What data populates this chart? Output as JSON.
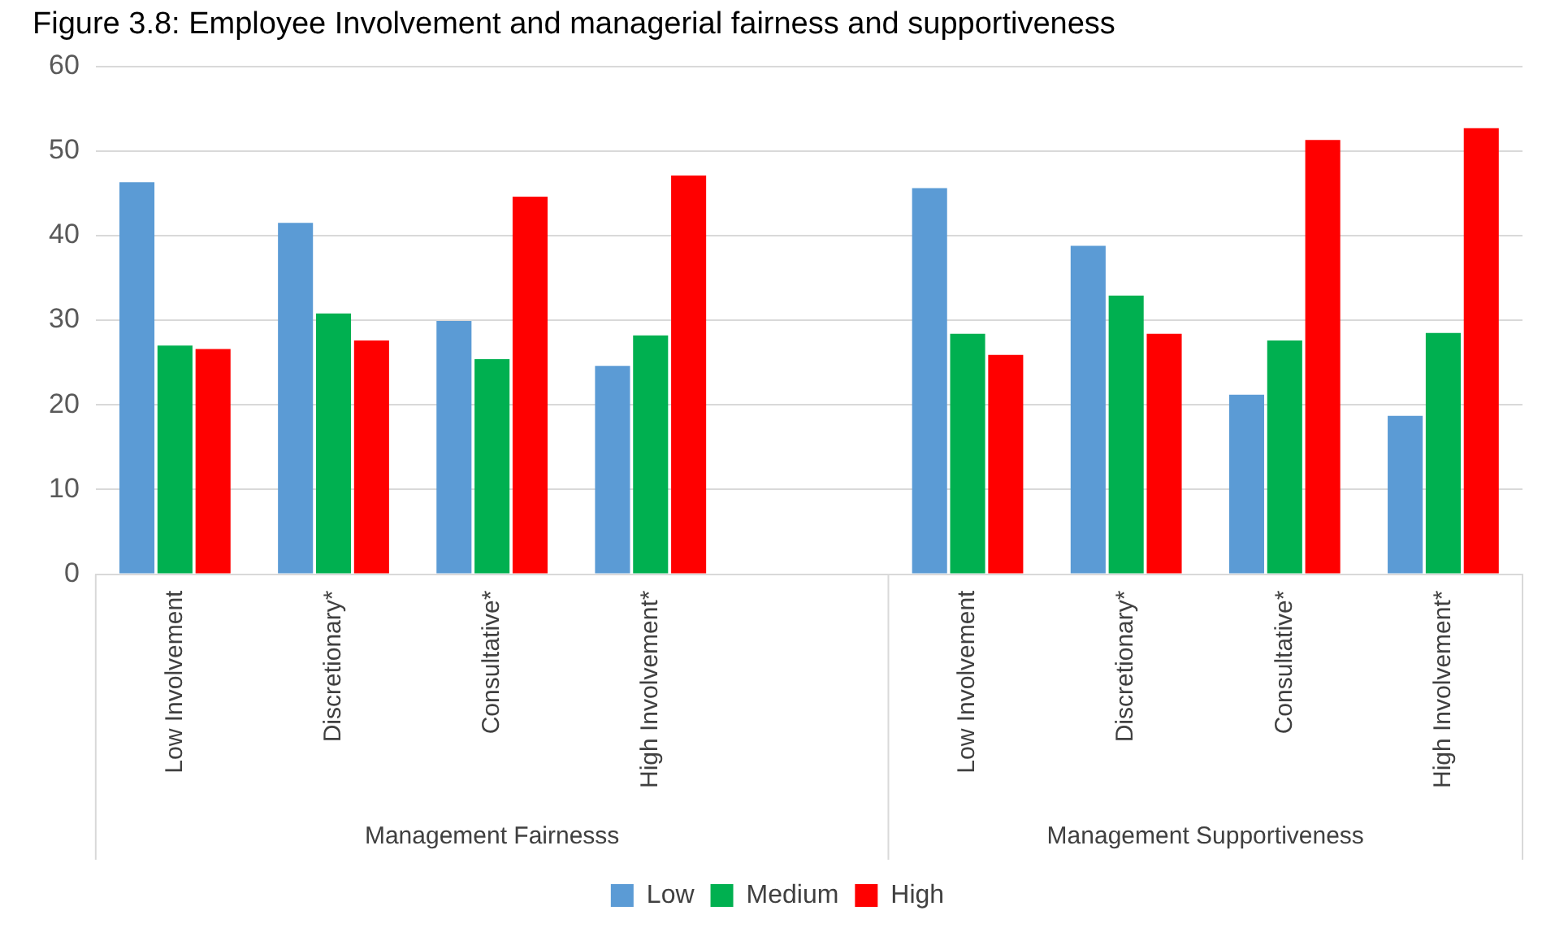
{
  "chart_data": {
    "type": "bar",
    "title": "Figure 3.8: Employee Involvement and managerial fairness and supportiveness",
    "categories": [
      "Low Involvement",
      "Discretionary*",
      "Consultative*",
      "High Involvement*",
      null,
      "Low Involvement",
      "Discretionary*",
      "Consultative*",
      "High Involvement*"
    ],
    "series": [
      {
        "name": "Low",
        "color": "#5b9bd5",
        "values": [
          46.3,
          41.5,
          29.9,
          24.6,
          null,
          45.6,
          38.8,
          21.2,
          18.7
        ]
      },
      {
        "name": "Medium",
        "color": "#00b050",
        "values": [
          27.0,
          30.8,
          25.4,
          28.2,
          null,
          28.4,
          32.9,
          27.6,
          28.5
        ]
      },
      {
        "name": "High",
        "color": "#ff0000",
        "values": [
          26.6,
          27.6,
          44.6,
          47.1,
          null,
          25.9,
          28.4,
          51.3,
          52.7
        ]
      }
    ],
    "annotations": [
      "Management Fairnesss",
      "Management Supportiveness"
    ],
    "ylim": [
      0,
      60
    ],
    "yticks": [
      0,
      10,
      20,
      30,
      40,
      50,
      60
    ],
    "grid": "y",
    "legend": "bottom"
  }
}
